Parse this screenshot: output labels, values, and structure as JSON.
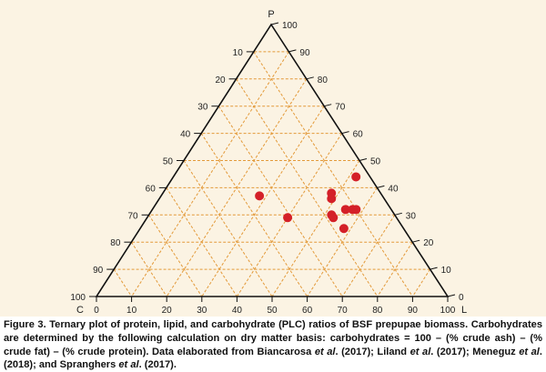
{
  "chart_data": {
    "type": "scatter",
    "subtype": "ternary",
    "vertex_labels": {
      "top": "P",
      "left": "C",
      "right": "L"
    },
    "axes": {
      "P": {
        "ticks": [
          0,
          10,
          20,
          30,
          40,
          50,
          60,
          70,
          80,
          90,
          100
        ],
        "range": [
          0,
          100
        ],
        "side": "right"
      },
      "C": {
        "ticks": [
          10,
          20,
          30,
          40,
          50,
          60,
          70,
          80,
          90,
          100
        ],
        "range": [
          0,
          100
        ],
        "side": "left"
      },
      "L": {
        "ticks": [
          0,
          10,
          20,
          30,
          40,
          50,
          60,
          70,
          80,
          90,
          100
        ],
        "range": [
          0,
          100
        ],
        "side": "bottom"
      }
    },
    "grid": true,
    "grid_color": "#e39a3a",
    "marker_color": "#d42028",
    "points": [
      {
        "P": 44,
        "L": 52,
        "C": 4
      },
      {
        "P": 38,
        "L": 48,
        "C": 14
      },
      {
        "P": 36,
        "L": 49,
        "C": 15
      },
      {
        "P": 37,
        "L": 28,
        "C": 35
      },
      {
        "P": 32,
        "L": 55,
        "C": 13
      },
      {
        "P": 32,
        "L": 57,
        "C": 11
      },
      {
        "P": 32,
        "L": 58,
        "C": 10
      },
      {
        "P": 30,
        "L": 52,
        "C": 18
      },
      {
        "P": 29,
        "L": 53,
        "C": 18
      },
      {
        "P": 29,
        "L": 40,
        "C": 31
      },
      {
        "P": 25,
        "L": 58,
        "C": 17
      }
    ]
  },
  "caption": {
    "parts": [
      {
        "text": "Figure 3. Ternary plot of protein, lipid, and carbohydrate (PLC) ratios of BSF prepupae biomass. Carbohydrates are determined by the following calculation on dry matter basis: carbohydrates = 100 – (% crude ash) – (% crude fat) – (% crude protein). Data elaborated from Biancarosa ",
        "italic": false
      },
      {
        "text": "et al",
        "italic": true
      },
      {
        "text": ". (2017); Liland ",
        "italic": false
      },
      {
        "text": "et al",
        "italic": true
      },
      {
        "text": ". (2017); Meneguz ",
        "italic": false
      },
      {
        "text": "et al",
        "italic": true
      },
      {
        "text": ". (2018); and Spranghers ",
        "italic": false
      },
      {
        "text": "et al",
        "italic": true
      },
      {
        "text": ". (2017).",
        "italic": false
      }
    ]
  }
}
